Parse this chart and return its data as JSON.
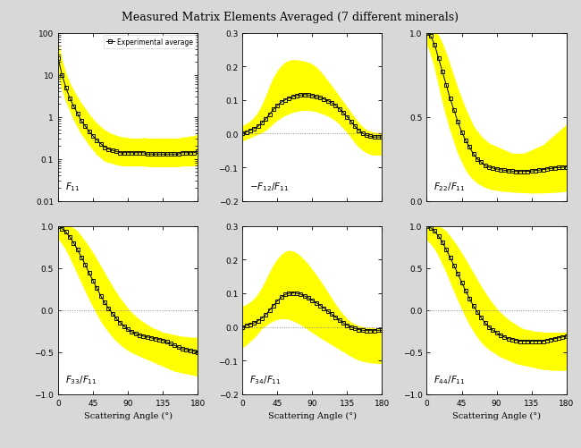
{
  "title": "Measured Matrix Elements Averaged (7 different minerals)",
  "angles": [
    0,
    5,
    10,
    15,
    20,
    25,
    30,
    35,
    40,
    45,
    50,
    55,
    60,
    65,
    70,
    75,
    80,
    85,
    90,
    95,
    100,
    105,
    110,
    115,
    120,
    125,
    130,
    135,
    140,
    145,
    150,
    155,
    160,
    165,
    170,
    175,
    180
  ],
  "F11_avg": [
    25,
    10,
    5,
    2.8,
    1.8,
    1.2,
    0.8,
    0.6,
    0.45,
    0.35,
    0.28,
    0.23,
    0.19,
    0.17,
    0.16,
    0.15,
    0.14,
    0.14,
    0.14,
    0.14,
    0.14,
    0.14,
    0.14,
    0.13,
    0.13,
    0.13,
    0.13,
    0.13,
    0.13,
    0.13,
    0.13,
    0.13,
    0.14,
    0.14,
    0.14,
    0.14,
    0.15
  ],
  "F11_min": [
    12,
    5,
    2.5,
    1.5,
    0.9,
    0.6,
    0.4,
    0.3,
    0.22,
    0.17,
    0.13,
    0.11,
    0.09,
    0.085,
    0.08,
    0.075,
    0.072,
    0.07,
    0.07,
    0.07,
    0.07,
    0.07,
    0.07,
    0.068,
    0.067,
    0.067,
    0.067,
    0.067,
    0.067,
    0.067,
    0.067,
    0.067,
    0.07,
    0.07,
    0.07,
    0.07,
    0.075
  ],
  "F11_max": [
    50,
    20,
    10,
    6,
    4.0,
    2.8,
    2.0,
    1.5,
    1.1,
    0.85,
    0.68,
    0.56,
    0.47,
    0.42,
    0.38,
    0.35,
    0.33,
    0.32,
    0.31,
    0.3,
    0.3,
    0.3,
    0.31,
    0.3,
    0.3,
    0.3,
    0.3,
    0.3,
    0.3,
    0.3,
    0.3,
    0.3,
    0.32,
    0.32,
    0.34,
    0.34,
    0.38
  ],
  "F12_avg": [
    0.0,
    0.005,
    0.01,
    0.015,
    0.022,
    0.032,
    0.044,
    0.058,
    0.072,
    0.084,
    0.094,
    0.1,
    0.106,
    0.11,
    0.113,
    0.115,
    0.116,
    0.115,
    0.113,
    0.11,
    0.107,
    0.103,
    0.098,
    0.092,
    0.084,
    0.074,
    0.062,
    0.05,
    0.036,
    0.022,
    0.01,
    0.001,
    -0.005,
    -0.008,
    -0.01,
    -0.01,
    -0.01
  ],
  "F12_min": [
    -0.02,
    -0.015,
    -0.01,
    -0.005,
    0.0,
    0.005,
    0.012,
    0.022,
    0.033,
    0.042,
    0.05,
    0.056,
    0.061,
    0.065,
    0.068,
    0.07,
    0.071,
    0.071,
    0.069,
    0.067,
    0.063,
    0.059,
    0.054,
    0.048,
    0.04,
    0.03,
    0.018,
    0.005,
    -0.01,
    -0.025,
    -0.038,
    -0.048,
    -0.055,
    -0.06,
    -0.062,
    -0.062,
    -0.062
  ],
  "F12_max": [
    0.022,
    0.028,
    0.036,
    0.046,
    0.062,
    0.082,
    0.108,
    0.138,
    0.165,
    0.185,
    0.2,
    0.21,
    0.216,
    0.218,
    0.218,
    0.216,
    0.214,
    0.21,
    0.205,
    0.196,
    0.184,
    0.17,
    0.155,
    0.14,
    0.124,
    0.108,
    0.092,
    0.076,
    0.06,
    0.044,
    0.03,
    0.018,
    0.01,
    0.005,
    0.002,
    0.001,
    0.001
  ],
  "F22_avg": [
    1.0,
    0.98,
    0.93,
    0.85,
    0.77,
    0.69,
    0.61,
    0.54,
    0.47,
    0.41,
    0.36,
    0.32,
    0.28,
    0.25,
    0.23,
    0.21,
    0.2,
    0.195,
    0.19,
    0.185,
    0.182,
    0.179,
    0.177,
    0.175,
    0.175,
    0.175,
    0.176,
    0.178,
    0.18,
    0.183,
    0.186,
    0.19,
    0.193,
    0.196,
    0.198,
    0.2,
    0.202
  ],
  "F22_min": [
    0.94,
    0.88,
    0.8,
    0.7,
    0.6,
    0.51,
    0.43,
    0.36,
    0.29,
    0.24,
    0.19,
    0.155,
    0.13,
    0.11,
    0.096,
    0.084,
    0.076,
    0.07,
    0.066,
    0.063,
    0.06,
    0.058,
    0.056,
    0.054,
    0.053,
    0.052,
    0.051,
    0.05,
    0.05,
    0.05,
    0.051,
    0.052,
    0.053,
    0.054,
    0.056,
    0.058,
    0.06
  ],
  "F22_max": [
    1.02,
    1.02,
    1.01,
    0.98,
    0.93,
    0.87,
    0.8,
    0.73,
    0.66,
    0.6,
    0.54,
    0.49,
    0.44,
    0.41,
    0.38,
    0.36,
    0.34,
    0.33,
    0.32,
    0.31,
    0.3,
    0.29,
    0.28,
    0.28,
    0.28,
    0.28,
    0.29,
    0.3,
    0.31,
    0.32,
    0.33,
    0.35,
    0.37,
    0.39,
    0.41,
    0.43,
    0.45
  ],
  "F33_avg": [
    1.0,
    0.97,
    0.93,
    0.87,
    0.8,
    0.72,
    0.63,
    0.54,
    0.44,
    0.35,
    0.26,
    0.17,
    0.09,
    0.02,
    -0.04,
    -0.1,
    -0.15,
    -0.19,
    -0.23,
    -0.26,
    -0.28,
    -0.3,
    -0.31,
    -0.32,
    -0.33,
    -0.34,
    -0.35,
    -0.36,
    -0.38,
    -0.4,
    -0.42,
    -0.44,
    -0.46,
    -0.47,
    -0.48,
    -0.49,
    -0.5
  ],
  "F33_min": [
    0.86,
    0.8,
    0.73,
    0.64,
    0.54,
    0.44,
    0.34,
    0.24,
    0.14,
    0.05,
    -0.04,
    -0.12,
    -0.19,
    -0.25,
    -0.31,
    -0.36,
    -0.4,
    -0.44,
    -0.47,
    -0.5,
    -0.52,
    -0.54,
    -0.56,
    -0.58,
    -0.6,
    -0.62,
    -0.64,
    -0.66,
    -0.68,
    -0.7,
    -0.72,
    -0.73,
    -0.74,
    -0.75,
    -0.76,
    -0.77,
    -0.78
  ],
  "F33_max": [
    1.02,
    1.02,
    1.01,
    0.99,
    0.97,
    0.93,
    0.87,
    0.81,
    0.74,
    0.67,
    0.59,
    0.51,
    0.43,
    0.35,
    0.27,
    0.2,
    0.13,
    0.07,
    0.01,
    -0.04,
    -0.08,
    -0.12,
    -0.15,
    -0.18,
    -0.21,
    -0.23,
    -0.25,
    -0.27,
    -0.28,
    -0.29,
    -0.3,
    -0.31,
    -0.32,
    -0.32,
    -0.33,
    -0.33,
    -0.33
  ],
  "F34_avg": [
    0.0,
    0.004,
    0.008,
    0.012,
    0.018,
    0.026,
    0.036,
    0.05,
    0.064,
    0.077,
    0.088,
    0.096,
    0.1,
    0.101,
    0.1,
    0.097,
    0.092,
    0.086,
    0.079,
    0.072,
    0.064,
    0.056,
    0.047,
    0.038,
    0.029,
    0.02,
    0.012,
    0.005,
    -0.001,
    -0.005,
    -0.008,
    -0.01,
    -0.011,
    -0.011,
    -0.011,
    -0.01,
    -0.01
  ],
  "F34_min": [
    -0.06,
    -0.05,
    -0.04,
    -0.03,
    -0.016,
    -0.002,
    0.006,
    0.014,
    0.02,
    0.024,
    0.026,
    0.026,
    0.024,
    0.02,
    0.015,
    0.008,
    0.001,
    -0.007,
    -0.015,
    -0.022,
    -0.03,
    -0.037,
    -0.044,
    -0.051,
    -0.058,
    -0.065,
    -0.072,
    -0.079,
    -0.086,
    -0.092,
    -0.097,
    -0.1,
    -0.103,
    -0.105,
    -0.106,
    -0.107,
    -0.108
  ],
  "F34_max": [
    0.06,
    0.065,
    0.072,
    0.082,
    0.096,
    0.114,
    0.136,
    0.16,
    0.182,
    0.2,
    0.213,
    0.222,
    0.226,
    0.224,
    0.218,
    0.208,
    0.196,
    0.183,
    0.168,
    0.152,
    0.136,
    0.118,
    0.1,
    0.082,
    0.064,
    0.048,
    0.034,
    0.022,
    0.013,
    0.006,
    0.002,
    -0.001,
    -0.003,
    -0.004,
    -0.005,
    -0.005,
    -0.005
  ],
  "F44_avg": [
    1.0,
    0.98,
    0.94,
    0.88,
    0.81,
    0.72,
    0.63,
    0.53,
    0.43,
    0.33,
    0.23,
    0.14,
    0.05,
    -0.02,
    -0.09,
    -0.15,
    -0.2,
    -0.24,
    -0.27,
    -0.3,
    -0.32,
    -0.34,
    -0.35,
    -0.36,
    -0.37,
    -0.37,
    -0.37,
    -0.37,
    -0.37,
    -0.37,
    -0.37,
    -0.36,
    -0.35,
    -0.34,
    -0.33,
    -0.32,
    -0.31
  ],
  "F44_min": [
    0.84,
    0.8,
    0.74,
    0.66,
    0.56,
    0.46,
    0.35,
    0.24,
    0.13,
    0.03,
    -0.07,
    -0.16,
    -0.24,
    -0.31,
    -0.37,
    -0.42,
    -0.46,
    -0.49,
    -0.52,
    -0.55,
    -0.57,
    -0.59,
    -0.61,
    -0.63,
    -0.64,
    -0.65,
    -0.66,
    -0.67,
    -0.68,
    -0.69,
    -0.7,
    -0.7,
    -0.71,
    -0.71,
    -0.71,
    -0.71,
    -0.71
  ],
  "F44_max": [
    1.02,
    1.02,
    1.01,
    0.99,
    0.97,
    0.93,
    0.87,
    0.81,
    0.74,
    0.67,
    0.59,
    0.51,
    0.43,
    0.35,
    0.27,
    0.2,
    0.13,
    0.07,
    0.01,
    -0.04,
    -0.08,
    -0.12,
    -0.15,
    -0.18,
    -0.21,
    -0.23,
    -0.24,
    -0.25,
    -0.26,
    -0.26,
    -0.27,
    -0.27,
    -0.27,
    -0.27,
    -0.27,
    -0.27,
    -0.27
  ],
  "yellow_color": "#FFFF00",
  "line_color": "#000000",
  "marker_color": "#000000",
  "fig_facecolor": "#d8d8d8",
  "axes_facecolor": "#ffffff",
  "label_F11": "$F_{11}$",
  "label_F12": "$-F_{12}/F_{11}$",
  "label_F22": "$F_{22}/F_{11}$",
  "label_F33": "$F_{33}/F_{11}$",
  "label_F34": "$F_{34}/F_{11}$",
  "label_F44": "$F_{44}/F_{11}$",
  "xlabel": "Scattering Angle (°)",
  "legend_label": "Experimental average"
}
